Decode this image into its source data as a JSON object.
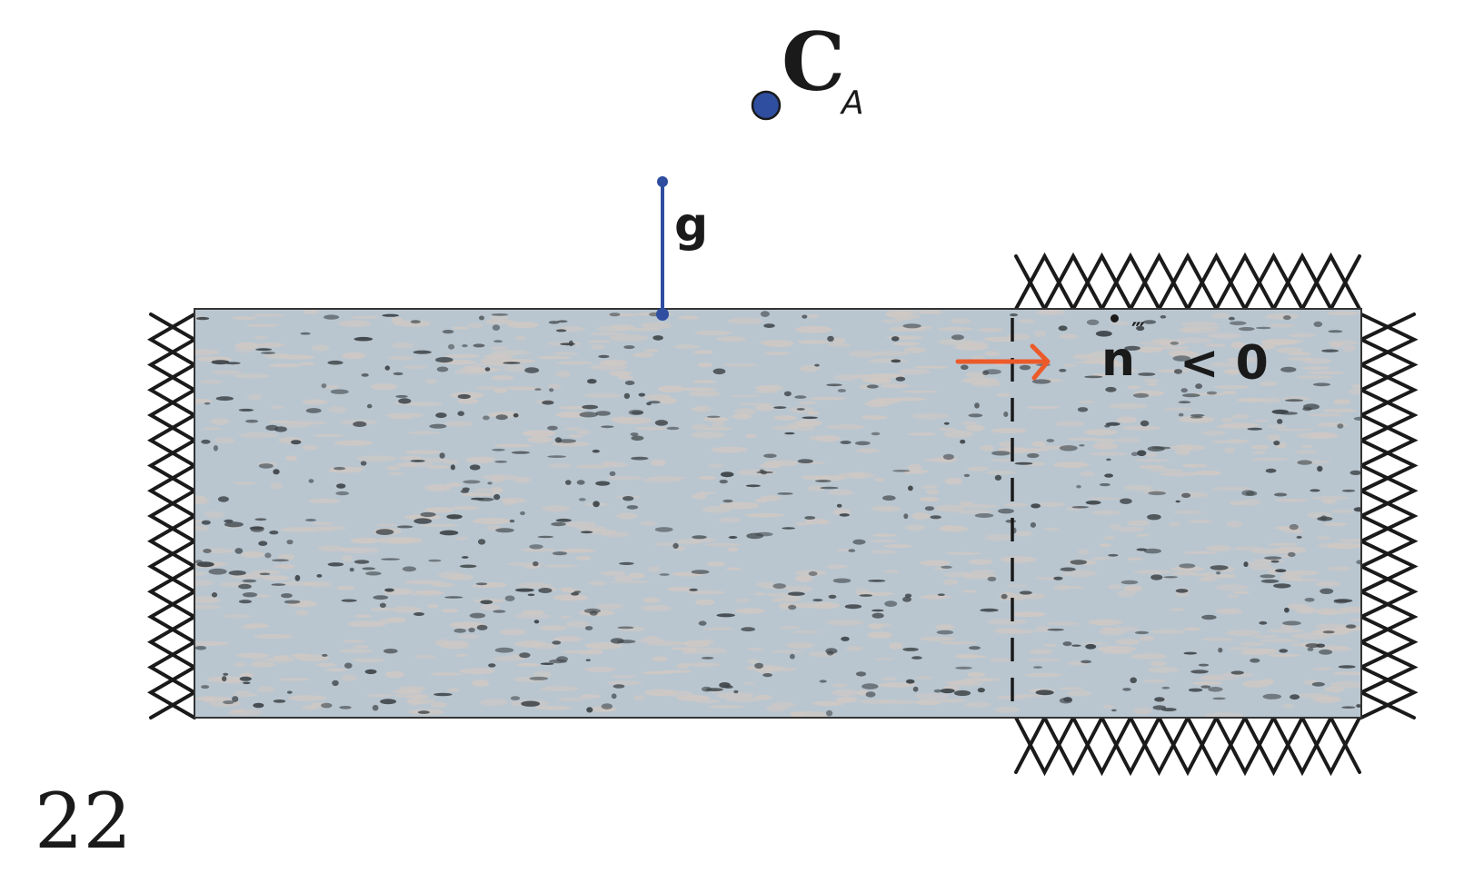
{
  "colors": {
    "slab_fill": "#b9c6d0",
    "speckle_dark": "#3e4448",
    "speckle_light": "#cfc8c4",
    "outline": "#1a1a1a",
    "blue": "#2f4ea0",
    "flux_arrow": "#ec5a2a"
  },
  "labels": {
    "source_point": "C",
    "source_point_sub": "A",
    "gap": "g",
    "flux_symbol": "n",
    "flux_primes": "‴",
    "flux_relation": "< 0",
    "page_number": "22"
  }
}
